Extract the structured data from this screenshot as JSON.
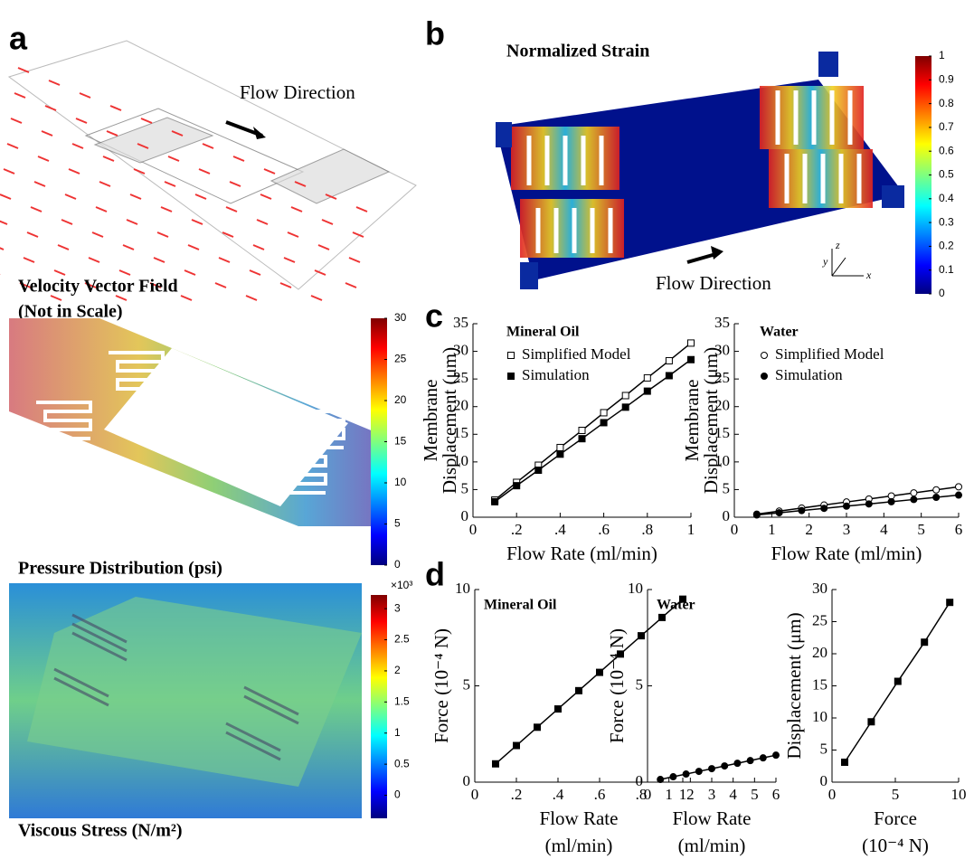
{
  "panel_labels": [
    "a",
    "b",
    "c",
    "d"
  ],
  "texts": {
    "flow_direction": "Flow Direction",
    "velocity_title": "Velocity Vector Field",
    "velocity_note": "(Not in Scale)",
    "pressure_title": "Pressure Distribution (psi)",
    "stress_title": "Viscous Stress (N/m²)",
    "strain_title": "Normalized Strain",
    "axis_y": "y",
    "axis_z": "z",
    "axis_x": "x"
  },
  "colorbars": [
    {
      "lim": [
        0,
        30
      ],
      "ticks": [
        0,
        5,
        10,
        15,
        20,
        25,
        30
      ]
    },
    {
      "lim": [
        -0.37,
        3.22
      ],
      "ticks": [
        0,
        0.5,
        1,
        1.5,
        2,
        2.5,
        3
      ],
      "multiplier": "×10³"
    },
    {
      "lim": [
        0,
        1
      ],
      "ticks": [
        0,
        0.1,
        0.2,
        0.3,
        0.4,
        0.5,
        0.6,
        0.7,
        0.8,
        0.9,
        1
      ]
    }
  ],
  "chart_data": [
    {
      "type": "line",
      "title": "Mineral Oil",
      "x_label": [
        "Flow Rate (ml/min)"
      ],
      "y_label": [
        "Membrane",
        "Displacement (μm)"
      ],
      "x": [
        0.1,
        0.2,
        0.3,
        0.4,
        0.5,
        0.6,
        0.7,
        0.8,
        0.9,
        1
      ],
      "series": [
        {
          "name": "Simplified Model",
          "color": "#000000",
          "marker": "open-square",
          "values": [
            3.1,
            6.3,
            9.4,
            12.6,
            15.7,
            18.9,
            22,
            25.2,
            28.3,
            31.5
          ]
        },
        {
          "name": "Simulation",
          "color": "#000000",
          "marker": "square",
          "values": [
            2.8,
            5.7,
            8.5,
            11.4,
            14.2,
            17.1,
            19.9,
            22.8,
            25.6,
            28.5
          ]
        }
      ],
      "xlim": [
        0,
        1
      ],
      "xticks": [
        0,
        {
          "value": 0.2,
          "label": ".2"
        },
        {
          "value": 0.4,
          "label": ".4"
        },
        {
          "value": 0.6,
          "label": ".6"
        },
        {
          "value": 0.8,
          "label": ".8"
        },
        1
      ],
      "ylim": [
        0,
        35
      ],
      "yticks": [
        0,
        5,
        10,
        15,
        20,
        25,
        30,
        35
      ]
    },
    {
      "type": "line",
      "title": "Water",
      "x_label": [
        "Flow Rate (ml/min)"
      ],
      "y_label": [
        "Membrane",
        "Displacement (μm)"
      ],
      "x": [
        0.6,
        1.2,
        1.8,
        2.4,
        3,
        3.6,
        4.2,
        4.8,
        5.4,
        6
      ],
      "series": [
        {
          "name": "Simplified Model",
          "color": "#000000",
          "marker": "open-circle",
          "values": [
            0.55,
            1.1,
            1.65,
            2.2,
            2.75,
            3.3,
            3.85,
            4.4,
            4.95,
            5.5
          ]
        },
        {
          "name": "Simulation",
          "color": "#000000",
          "marker": "circle",
          "values": [
            0.4,
            0.8,
            1.2,
            1.6,
            2.0,
            2.4,
            2.8,
            3.2,
            3.6,
            4.0
          ]
        }
      ],
      "xlim": [
        0,
        6
      ],
      "xticks": [
        0,
        1,
        2,
        3,
        4,
        5,
        6
      ],
      "ylim": [
        0,
        35
      ],
      "yticks": [
        0,
        5,
        10,
        15,
        20,
        25,
        30,
        35
      ]
    },
    {
      "type": "line",
      "title": "Mineral Oil",
      "x_label": [
        "Flow Rate",
        "(ml/min)"
      ],
      "y_label": [
        "Force (10⁻⁴ N)"
      ],
      "x": [
        0.1,
        0.2,
        0.3,
        0.4,
        0.5,
        0.6,
        0.7,
        0.8,
        0.9,
        1
      ],
      "series": [
        {
          "color": "#000000",
          "marker": "square",
          "values": [
            0.95,
            1.9,
            2.85,
            3.8,
            4.75,
            5.7,
            6.65,
            7.6,
            8.55,
            9.5
          ]
        }
      ],
      "xlim": [
        0,
        1
      ],
      "xticks": [
        0,
        {
          "value": 0.2,
          "label": ".2"
        },
        {
          "value": 0.4,
          "label": ".4"
        },
        {
          "value": 0.6,
          "label": ".6"
        },
        {
          "value": 0.8,
          "label": ".8"
        },
        1
      ],
      "ylim": [
        0,
        10
      ],
      "yticks": [
        0,
        5,
        10
      ]
    },
    {
      "type": "line",
      "title": "Water",
      "x_label": [
        "Flow Rate",
        "(ml/min)"
      ],
      "y_label": [
        "Force (10⁻⁴ N)"
      ],
      "x": [
        0.6,
        1.2,
        1.8,
        2.4,
        3,
        3.6,
        4.2,
        4.8,
        5.4,
        6
      ],
      "series": [
        {
          "color": "#000000",
          "marker": "circle",
          "values": [
            0.14,
            0.28,
            0.42,
            0.56,
            0.7,
            0.84,
            0.98,
            1.12,
            1.26,
            1.4
          ]
        }
      ],
      "xlim": [
        0,
        6
      ],
      "xticks": [
        0,
        1,
        2,
        3,
        4,
        5,
        6
      ],
      "ylim": [
        0,
        10
      ],
      "yticks": [
        0,
        5,
        10
      ]
    },
    {
      "type": "line",
      "x_label": [
        "Force",
        "(10⁻⁴ N)"
      ],
      "y_label": [
        "Displacement (μm)"
      ],
      "x": [
        1.0,
        3.1,
        5.2,
        7.3,
        9.3
      ],
      "series": [
        {
          "color": "#000000",
          "marker": "square",
          "values": [
            3.1,
            9.4,
            15.7,
            21.8,
            28
          ]
        }
      ],
      "xlim": [
        0,
        10
      ],
      "xticks": [
        0,
        5,
        10
      ],
      "ylim": [
        0,
        30
      ],
      "yticks": [
        0,
        5,
        10,
        15,
        20,
        25,
        30
      ]
    }
  ]
}
